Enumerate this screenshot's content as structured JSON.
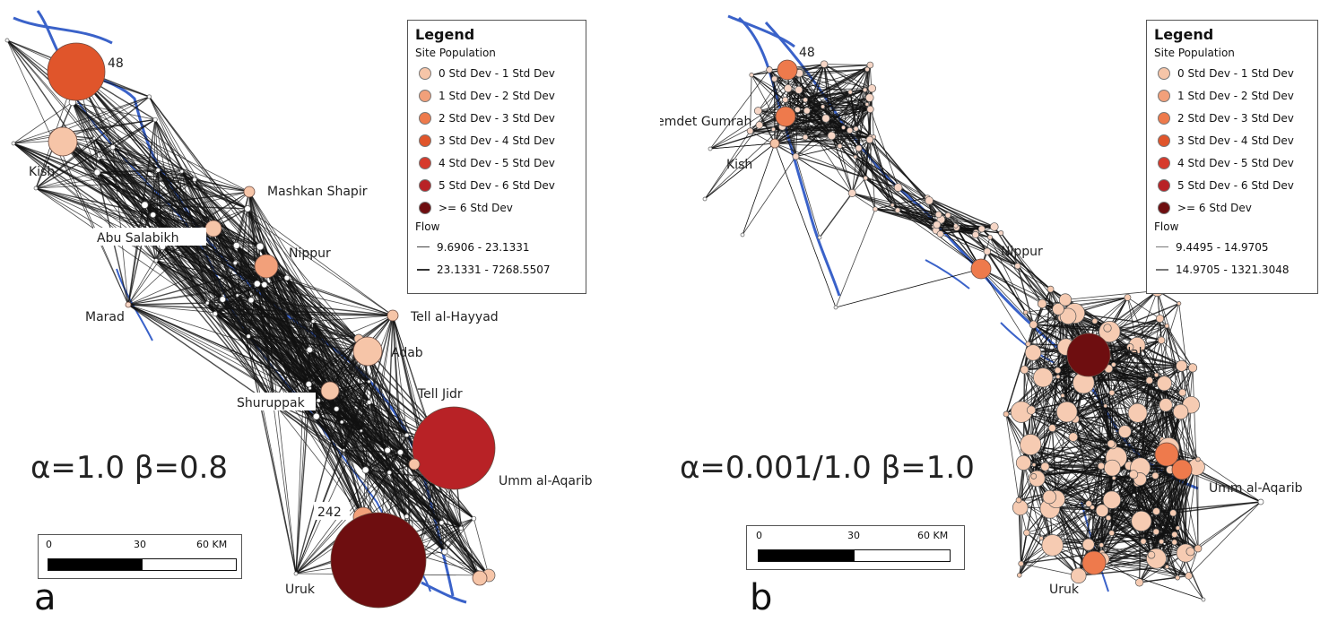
{
  "colors": {
    "c0": "#f6c5a8",
    "c1": "#f2a07a",
    "c2": "#ee7a4c",
    "c3": "#e0552b",
    "c4": "#d63a2c",
    "c5": "#b82226",
    "c6": "#6e0e10",
    "river": "#3a62c9",
    "edge": "#111111"
  },
  "legend": {
    "title": "Legend",
    "site_population_label": "Site Population",
    "population_classes": [
      {
        "label": "0 Std Dev - 1 Std Dev",
        "color": "#f6c5a8"
      },
      {
        "label": "1 Std Dev - 2 Std Dev",
        "color": "#f2a07a"
      },
      {
        "label": "2 Std Dev - 3 Std Dev",
        "color": "#ee7a4c"
      },
      {
        "label": "3 Std Dev - 4 Std Dev",
        "color": "#e0552b"
      },
      {
        "label": "4 Std Dev - 5 Std Dev",
        "color": "#d63a2c"
      },
      {
        "label": "5 Std Dev - 6 Std Dev",
        "color": "#b82226"
      },
      {
        "label": ">= 6 Std Dev",
        "color": "#6e0e10"
      }
    ],
    "flow_label": "Flow"
  },
  "panel_a": {
    "letter": "a",
    "params": "α=1.0 β=0.8",
    "flow_classes": [
      "9.6906 - 23.1331",
      "23.1331 - 7268.5507"
    ],
    "scale_ticks": [
      "0",
      "30",
      "60 KM"
    ],
    "labels": {
      "s48": "48",
      "kish": "Kish",
      "mashkan": "Mashkan Shapir",
      "abu": "Abu Salabikh",
      "nippur": "Nippur",
      "marad": "Marad",
      "hayyad": "Tell al-Hayyad",
      "adab": "Adab",
      "jidr": "Tell Jidr",
      "shuruppak": "Shuruppak",
      "umm": "Umm al-Aqarib",
      "s242": "242",
      "uruk": "Uruk"
    }
  },
  "panel_b": {
    "letter": "b",
    "params": "α=0.001/1.0 β=1.0",
    "flow_classes": [
      "9.4495 - 14.9705",
      "14.9705 - 1321.3048"
    ],
    "scale_ticks": [
      "0",
      "30",
      "60 KM"
    ],
    "labels": {
      "s48": "48",
      "jemdet": "Jemdet Gumrah",
      "kish": "Kish",
      "nippur": "Nippur",
      "adab": "Adab",
      "umm": "Umm al-Aqarib",
      "uruk": "Uruk"
    }
  }
}
